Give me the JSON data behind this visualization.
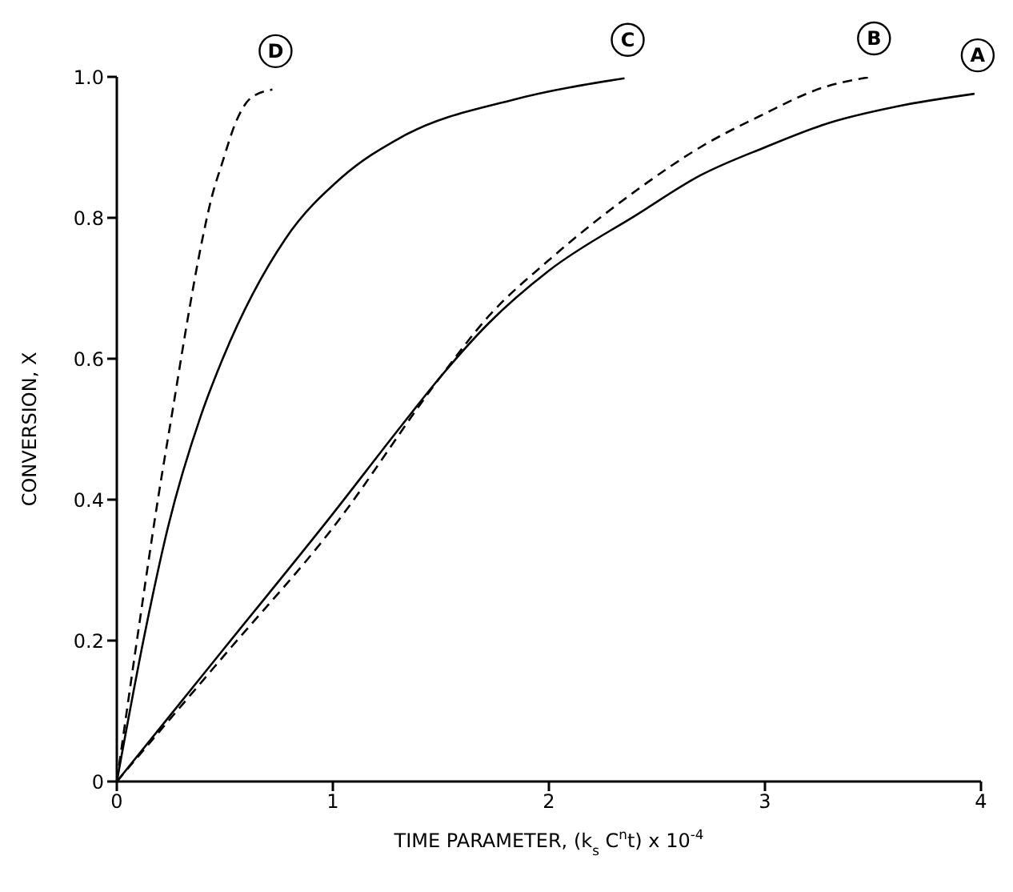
{
  "chart_data": {
    "type": "line",
    "xlabel": "TIME PARAMETER, (k$_{s}$ C$^{n}$t) x 10$^{-4}$",
    "ylabel": "CONVERSION, X",
    "xlim": [
      0,
      4
    ],
    "ylim": [
      0,
      1
    ],
    "xticks": [
      0,
      1,
      2,
      3,
      4
    ],
    "yticks": [
      0,
      0.2,
      0.4,
      0.6,
      0.8,
      {
        "value": 1,
        "label": "1.0"
      }
    ],
    "grid": false,
    "legend": false,
    "marker": "none",
    "series": [
      {
        "name": "A",
        "color": "#000000",
        "line_style": "solid",
        "x": [
          0,
          0.5,
          1,
          1.32,
          1.5,
          1.72,
          2,
          2.41,
          2.7,
          3,
          3.3,
          3.61,
          3.97
        ],
        "values": [
          0,
          0.19,
          0.38,
          0.506,
          0.575,
          0.65,
          0.725,
          0.805,
          0.86,
          0.9,
          0.935,
          0.958,
          0.976
        ]
      },
      {
        "name": "B",
        "color": "#000000",
        "line_style": "dashed",
        "x": [
          0,
          0.5,
          1,
          1.5,
          1.72,
          2,
          2.41,
          2.7,
          2.98,
          3.27,
          3.49
        ],
        "values": [
          0,
          0.18,
          0.36,
          0.575,
          0.66,
          0.74,
          0.84,
          0.9,
          0.945,
          0.985,
          1.0
        ]
      },
      {
        "name": "C",
        "color": "#000000",
        "line_style": "solid",
        "x": [
          0,
          0.136,
          0.236,
          0.39,
          0.49,
          0.78,
          1.04,
          1.32,
          1.84,
          2.35
        ],
        "values": [
          0,
          0.22,
          0.36,
          0.52,
          0.6,
          0.77,
          0.857,
          0.915,
          0.968,
          0.998
        ]
      },
      {
        "name": "D",
        "color": "#000000",
        "line_style": "dashed",
        "x": [
          0,
          0.093,
          0.19,
          0.26,
          0.33,
          0.38,
          0.44,
          0.49,
          0.55,
          0.62,
          0.72
        ],
        "values": [
          0,
          0.2,
          0.4,
          0.53,
          0.66,
          0.745,
          0.83,
          0.88,
          0.935,
          0.97,
          0.982
        ]
      }
    ]
  }
}
